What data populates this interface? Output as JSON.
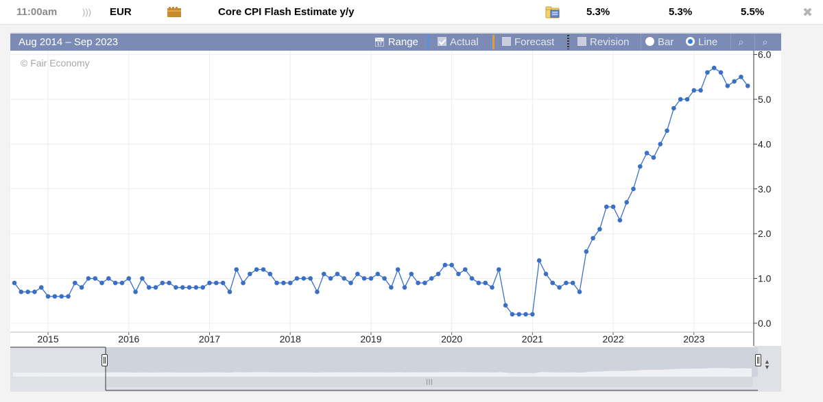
{
  "event": {
    "time": "11:00am",
    "currency": "EUR",
    "title": "Core CPI Flash Estimate y/y",
    "actual": "5.3%",
    "forecast": "5.3%",
    "previous": "5.5%",
    "impact_icon": "folder-impact-icon",
    "detail_icon": "detail-folder-icon",
    "close_icon": "close-icon",
    "colors": {
      "impact": "#c98a2e"
    }
  },
  "toolbar": {
    "range_text": "Aug 2014 – Sep 2023",
    "range_label": "Range",
    "actual_label": "Actual",
    "forecast_label": "Forecast",
    "revision_label": "Revision",
    "bar_label": "Bar",
    "line_label": "Line",
    "zoom_in_icon": "zoom-in-icon",
    "zoom_out_icon": "zoom-out-icon",
    "actual_checked": true,
    "forecast_checked": false,
    "revision_checked": false,
    "mode": "line",
    "colors": {
      "background": "#7b8bb6",
      "actual_marker": "#5b8fd6",
      "forecast_marker": "#e39a3a"
    }
  },
  "copyright": "© Fair Economy",
  "chart_data": {
    "type": "line",
    "x_start": "2014-08",
    "x_end": "2023-09",
    "frequency": "monthly",
    "y_axis_side": "right",
    "ylim": [
      -0.2,
      6.0
    ],
    "yticks": [
      "0.0",
      "1.0",
      "2.0",
      "3.0",
      "4.0",
      "5.0",
      "6.0"
    ],
    "xticks": [
      "2015",
      "2016",
      "2017",
      "2018",
      "2019",
      "2020",
      "2021",
      "2022",
      "2023"
    ],
    "grid": true,
    "series": [
      {
        "color": "#3a6fc7",
        "values": [
          0.9,
          0.7,
          0.7,
          0.7,
          0.8,
          0.6,
          0.6,
          0.6,
          0.6,
          0.9,
          0.8,
          1.0,
          1.0,
          0.9,
          1.0,
          0.9,
          0.9,
          1.0,
          0.7,
          1.0,
          0.8,
          0.8,
          0.9,
          0.9,
          0.8,
          0.8,
          0.8,
          0.8,
          0.8,
          0.9,
          0.9,
          0.9,
          0.7,
          1.2,
          0.9,
          1.1,
          1.2,
          1.2,
          1.1,
          0.9,
          0.9,
          0.9,
          1.0,
          1.0,
          1.0,
          0.7,
          1.1,
          1.0,
          1.1,
          1.0,
          0.9,
          1.1,
          1.0,
          1.0,
          1.1,
          1.0,
          0.8,
          1.2,
          0.8,
          1.1,
          0.9,
          0.9,
          1.0,
          1.1,
          1.3,
          1.3,
          1.1,
          1.2,
          1.0,
          0.9,
          0.9,
          0.8,
          1.2,
          0.4,
          0.2,
          0.2,
          0.2,
          0.2,
          1.4,
          1.1,
          0.9,
          0.8,
          0.9,
          0.9,
          0.7,
          1.6,
          1.9,
          2.1,
          2.6,
          2.6,
          2.3,
          2.7,
          3.0,
          3.5,
          3.8,
          3.7,
          4.0,
          4.3,
          4.8,
          5.0,
          5.0,
          5.2,
          5.2,
          5.6,
          5.7,
          5.6,
          5.3,
          5.4,
          5.5,
          5.3
        ]
      }
    ]
  }
}
